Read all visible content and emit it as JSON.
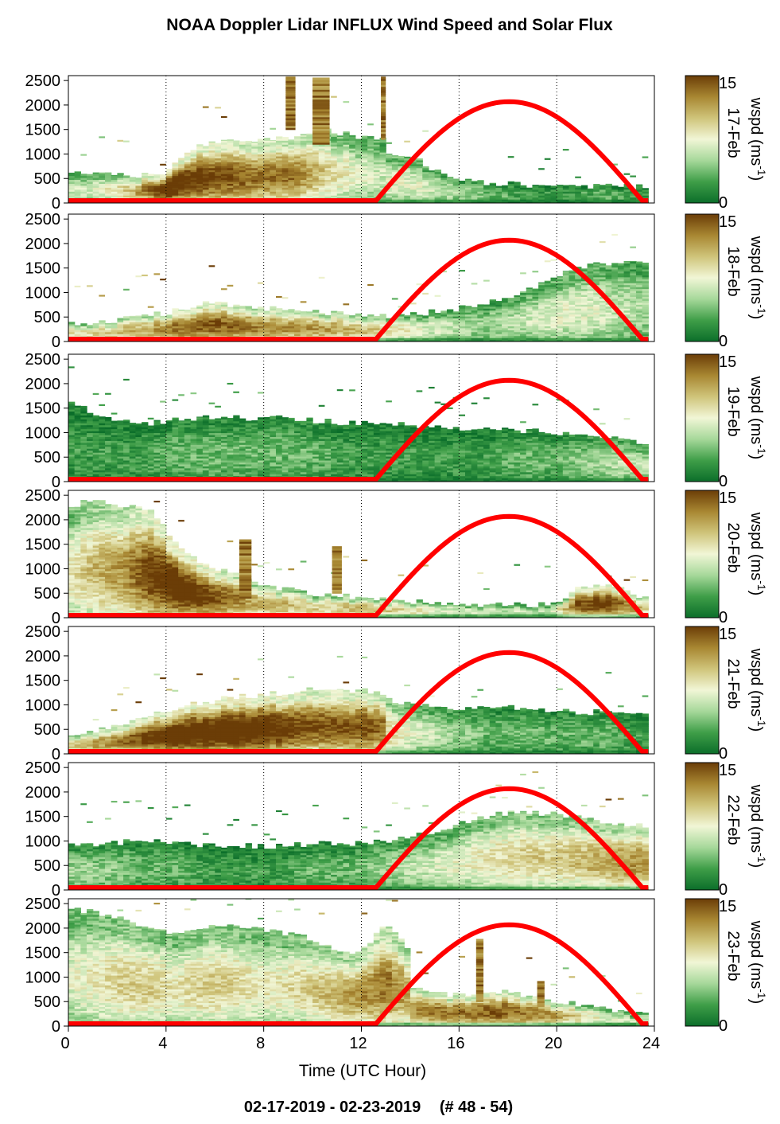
{
  "page": {
    "title": "NOAA Doppler Lidar INFLUX Wind Speed and Solar Flux",
    "date_range": "02-17-2019 - 02-23-2019",
    "file_range": "(# 48 - 54)"
  },
  "colors": {
    "sun_curve": "#ff0000",
    "scale": [
      "#0b6e2a",
      "#3f9e48",
      "#a6d89a",
      "#f1f6d6",
      "#cfc47a",
      "#a88732",
      "#6b3d07"
    ]
  },
  "chart_data": {
    "type": "heatmap",
    "title": "NOAA Doppler Lidar INFLUX Wind Speed and Solar Flux",
    "xlabel": "Time (UTC Hour)",
    "xlim": [
      0,
      24
    ],
    "x_ticks": [
      0,
      4,
      8,
      12,
      16,
      20,
      24
    ],
    "ylim": [
      0,
      2600
    ],
    "y_ticks": [
      0,
      500,
      1000,
      1500,
      2000,
      2500
    ],
    "colorbar": {
      "label": "wspd (ms",
      "label_exp": "-1",
      "label_close": ")",
      "min": 0,
      "max": 15,
      "min_label": "0",
      "max_label": "15"
    },
    "solar_curve": {
      "sunrise_hour": 12.6,
      "sunset_hour": 23.5,
      "peak_hour": 18,
      "peak_height": 2020
    },
    "panels": [
      {
        "label": "17-Feb",
        "layers": [
          {
            "from": 0,
            "to": 13,
            "h": [
              600,
              600,
              520,
              650,
              1200,
              1250,
              1300,
              1350,
              1500,
              1350,
              1300
            ],
            "w": [
              5,
              6,
              9,
              14,
              13,
              12,
              11,
              11,
              8,
              6,
              5
            ]
          },
          {
            "from": 13,
            "to": 24,
            "h": [
              1050,
              900,
              600,
              450,
              400,
              380,
              350,
              330,
              340,
              330,
              320
            ],
            "w": [
              6,
              6,
              5,
              4,
              3,
              2,
              2,
              2,
              3,
              2,
              2
            ]
          }
        ],
        "spikes": [
          [
            8.9,
            9.3,
            1500,
            2550
          ],
          [
            10.0,
            10.7,
            1200,
            2550
          ],
          [
            12.8,
            13.0,
            1300,
            2550
          ]
        ]
      },
      {
        "label": "18-Feb",
        "layers": [
          {
            "from": 0,
            "to": 24,
            "h": [
              380,
              400,
              500,
              620,
              780,
              720,
              650,
              600,
              580,
              520,
              560,
              650,
              800,
              1000,
              1300,
              1550,
              1650,
              1600
            ],
            "w": [
              7,
              8,
              9,
              11,
              12,
              11,
              10,
              10,
              9,
              8,
              6,
              5,
              4,
              5,
              6,
              6,
              5,
              4
            ]
          }
        ],
        "spikes": []
      },
      {
        "label": "19-Feb",
        "layers": [
          {
            "from": 0,
            "to": 24,
            "h": [
              1600,
              1300,
              1150,
              1250,
              1300,
              1300,
              1300,
              1250,
              1200,
              1200,
              1150,
              1100,
              1100,
              1050,
              1000,
              900,
              850,
              800
            ],
            "w": [
              2,
              2,
              2,
              3,
              3,
              3,
              3,
              3,
              2,
              2,
              2,
              2,
              2,
              3,
              3,
              4,
              5,
              5
            ]
          }
        ],
        "spikes": []
      },
      {
        "label": "20-Feb",
        "layers": [
          {
            "from": 0,
            "to": 12,
            "h": [
              2300,
              2400,
              2300,
              2200,
              1500,
              1100,
              900,
              700,
              600,
              500,
              450,
              400
            ],
            "w": [
              7,
              9,
              10,
              13,
              14,
              13,
              11,
              9,
              9,
              8,
              8,
              9
            ]
          },
          {
            "from": 12,
            "to": 24,
            "h": [
              380,
              360,
              330,
              300,
              280,
              270,
              260,
              260,
              600,
              700,
              500,
              300
            ],
            "w": [
              9,
              8,
              7,
              6,
              6,
              5,
              5,
              5,
              12,
              13,
              10,
              6
            ]
          }
        ],
        "spikes": [
          [
            7.0,
            7.5,
            400,
            1600
          ],
          [
            10.8,
            11.2,
            500,
            1450
          ]
        ]
      },
      {
        "label": "21-Feb",
        "layers": [
          {
            "from": 0,
            "to": 13,
            "h": [
              350,
              500,
              600,
              800,
              950,
              1050,
              1150,
              1200,
              1250,
              1300,
              1300,
              1300,
              1250
            ],
            "w": [
              8,
              10,
              11,
              13,
              14,
              14,
              14,
              14,
              13,
              12,
              12,
              12,
              11
            ]
          },
          {
            "from": 13,
            "to": 24,
            "h": [
              1100,
              1000,
              950,
              950,
              950,
              950,
              900,
              900,
              850,
              850,
              800,
              800
            ],
            "w": [
              8,
              6,
              5,
              4,
              3,
              3,
              3,
              3,
              3,
              3,
              2,
              2
            ]
          }
        ],
        "spikes": []
      },
      {
        "label": "22-Feb",
        "layers": [
          {
            "from": 0,
            "to": 24,
            "h": [
              950,
              950,
              1000,
              950,
              900,
              900,
              900,
              950,
              950,
              1000,
              1100,
              1300,
              1500,
              1600,
              1550,
              1450,
              1350,
              1300
            ],
            "w": [
              4,
              4,
              3,
              3,
              2,
              2,
              2,
              3,
              3,
              4,
              5,
              6,
              7,
              8,
              8,
              9,
              10,
              10
            ]
          }
        ],
        "spikes": []
      },
      {
        "label": "23-Feb",
        "layers": [
          {
            "from": 0,
            "to": 14,
            "h": [
              2400,
              2300,
              2200,
              2000,
              1900,
              2000,
              2100,
              2000,
              1900,
              1800,
              1600,
              1500,
              2100,
              1500
            ],
            "w": [
              6,
              7,
              8,
              8,
              7,
              8,
              8,
              7,
              7,
              8,
              9,
              10,
              11,
              9
            ]
          },
          {
            "from": 14,
            "to": 24,
            "h": [
              800,
              650,
              600,
              700,
              650,
              550,
              450,
              350,
              280,
              250
            ],
            "w": [
              10,
              11,
              11,
              12,
              11,
              10,
              8,
              6,
              5,
              5
            ]
          }
        ],
        "spikes": [
          [
            16.7,
            17.0,
            500,
            1750
          ],
          [
            19.2,
            19.5,
            400,
            900
          ]
        ]
      }
    ]
  }
}
